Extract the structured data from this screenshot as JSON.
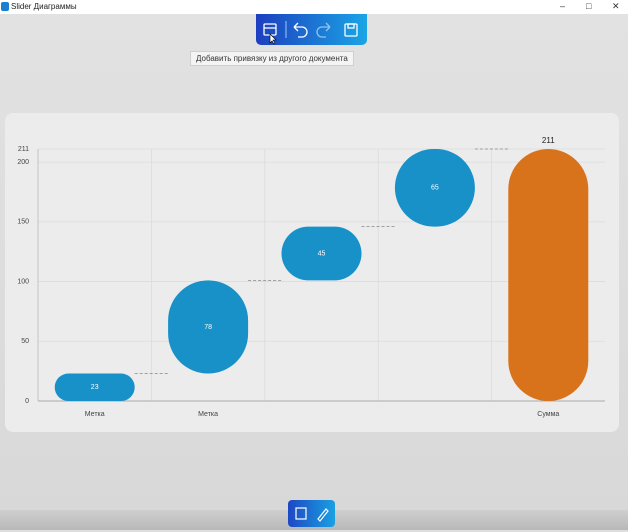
{
  "window": {
    "title": "Slider Диаграммы"
  },
  "tooltip": "Добавить привязку из другого документа",
  "chart_data": {
    "type": "waterfall",
    "categories": [
      "Метка",
      "Метка",
      null,
      null,
      "Сумма"
    ],
    "values": [
      23,
      78,
      45,
      65,
      211
    ],
    "total_indices": [
      4
    ],
    "color": "#1890c8",
    "total_color": "#d8731c",
    "ylim": [
      0,
      211
    ],
    "yticks": [
      0,
      50,
      100,
      150,
      200,
      211
    ],
    "grid": true
  }
}
